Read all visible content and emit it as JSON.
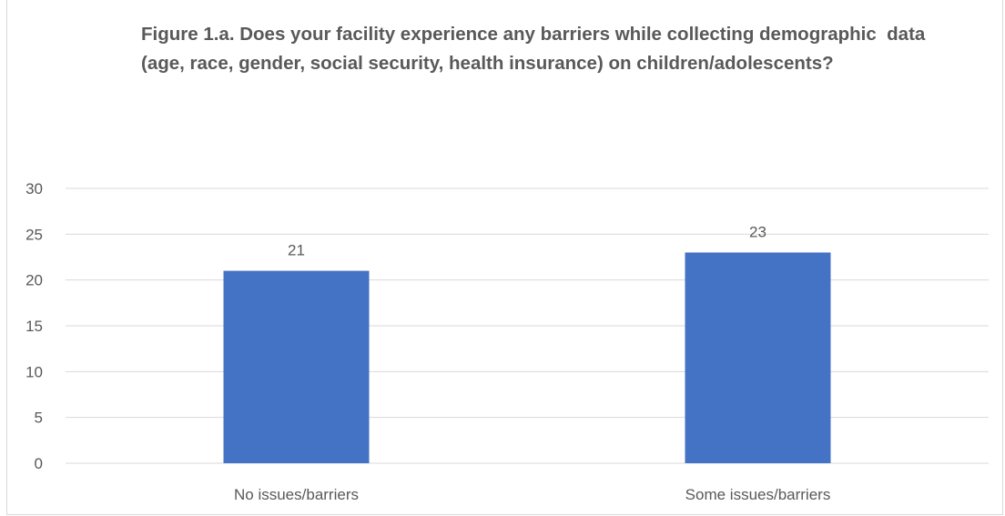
{
  "chart_data": {
    "type": "bar",
    "title": "Figure 1.a. Does your facility experience any barriers while collecting demographic  data (age, race, gender, social security, health insurance) on children/adolescents?",
    "xlabel": "",
    "ylabel": "",
    "categories": [
      "No issues/barriers",
      "Some issues/barriers"
    ],
    "values": [
      21,
      23
    ],
    "data_labels": [
      "21",
      "23"
    ],
    "ylim": [
      0,
      30
    ],
    "yticks": [
      "0",
      "5",
      "10",
      "15",
      "20",
      "25",
      "30"
    ],
    "grid": true,
    "legend": "none",
    "colors": {
      "bar": "#4472C4",
      "grid": "#d9d9d9",
      "text": "#595959"
    }
  }
}
